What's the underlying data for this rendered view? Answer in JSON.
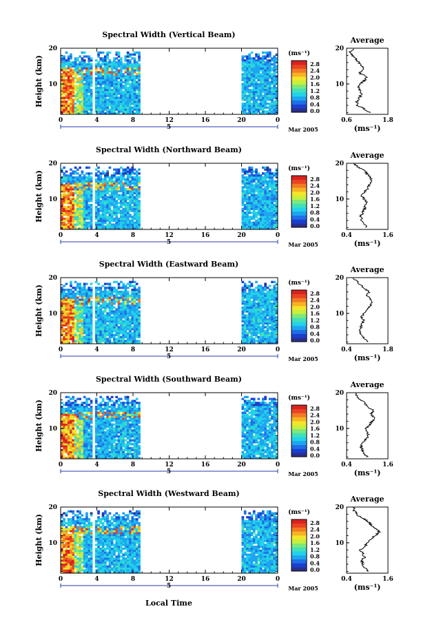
{
  "xlabel": "Local Time",
  "units_label": "(ms⁻¹)",
  "date_label": "Mar 2005",
  "colorbar": {
    "ticks": [
      "2.8",
      "2.4",
      "2.0",
      "1.6",
      "1.2",
      "0.8",
      "0.4",
      "0.0"
    ],
    "colors": [
      "#2b2f8a",
      "#1a3fd0",
      "#1f6fe6",
      "#1ea5f0",
      "#22d2e8",
      "#42e0b8",
      "#7ee87a",
      "#c6ef3e",
      "#f3e52a",
      "#f7b324",
      "#f37a25",
      "#e94422",
      "#d92320"
    ]
  },
  "chart_data": [
    {
      "type": "heatmap",
      "title": "Spectral Width (Vertical Beam)",
      "ylabel": "Height (km)",
      "xlabel": "Local Time",
      "xticks": [
        "0",
        "4",
        "8",
        "12",
        "16",
        "20",
        "0"
      ],
      "xlim": [
        0,
        24
      ],
      "ylim": [
        1.5,
        20
      ],
      "yticks": [
        "20",
        "10"
      ],
      "segment_label": "5",
      "data_intervals_hours": [
        [
          0,
          3.5
        ],
        [
          3.8,
          8.8
        ],
        [
          20,
          24
        ]
      ],
      "colorbar_range": [
        0,
        3
      ],
      "profile": {
        "title": "Average",
        "xlim": [
          0.6,
          1.8
        ],
        "xticks": [
          "0.6",
          "1.8"
        ],
        "yticks": [
          "20",
          "10"
        ],
        "xlabel": "(ms⁻¹)",
        "height_km": [
          2,
          3,
          4,
          5,
          6,
          7,
          8,
          9,
          10,
          11,
          12,
          13,
          14,
          15,
          16,
          17,
          18,
          19,
          20
        ],
        "width": [
          1.28,
          1.12,
          0.92,
          0.9,
          0.96,
          1.02,
          0.98,
          0.95,
          1.0,
          1.12,
          1.2,
          0.98,
          1.08,
          1.04,
          0.96,
          0.86,
          0.78,
          0.7,
          0.8
        ]
      }
    },
    {
      "type": "heatmap",
      "title": "Spectral Width (Northward Beam)",
      "ylabel": "Height (km)",
      "xlabel": "Local Time",
      "xticks": [
        "0",
        "4",
        "8",
        "12",
        "16",
        "20",
        "0"
      ],
      "xlim": [
        0,
        24
      ],
      "ylim": [
        1.5,
        20
      ],
      "yticks": [
        "20",
        "10"
      ],
      "segment_label": "5",
      "data_intervals_hours": [
        [
          0,
          3.5
        ],
        [
          3.8,
          8.8
        ],
        [
          20,
          24
        ]
      ],
      "colorbar_range": [
        0,
        3
      ],
      "profile": {
        "title": "Average",
        "xlim": [
          0.4,
          1.6
        ],
        "xticks": [
          "0.4",
          "1.6"
        ],
        "yticks": [
          "20",
          "10"
        ],
        "xlabel": "(ms⁻¹)",
        "height_km": [
          2,
          3,
          4,
          5,
          6,
          7,
          8,
          9,
          10,
          11,
          12,
          13,
          14,
          15,
          16,
          17,
          18,
          19,
          20
        ],
        "width": [
          0.98,
          0.9,
          0.84,
          0.8,
          0.86,
          0.92,
          0.94,
          1.0,
          0.9,
          0.82,
          0.92,
          1.02,
          1.06,
          1.14,
          1.08,
          1.0,
          0.9,
          0.72,
          0.6
        ]
      }
    },
    {
      "type": "heatmap",
      "title": "Spectral Width (Eastward Beam)",
      "ylabel": "Height (km)",
      "xlabel": "Local Time",
      "xticks": [
        "0",
        "4",
        "8",
        "12",
        "16",
        "20",
        "0"
      ],
      "xlim": [
        0,
        24
      ],
      "ylim": [
        1.5,
        20
      ],
      "yticks": [
        "20",
        "10"
      ],
      "segment_label": "5",
      "data_intervals_hours": [
        [
          0,
          3.5
        ],
        [
          3.8,
          8.8
        ],
        [
          20,
          24
        ]
      ],
      "colorbar_range": [
        0,
        3
      ],
      "profile": {
        "title": "Average",
        "xlim": [
          0.4,
          1.8
        ],
        "xticks": [
          "0.4",
          "1.8"
        ],
        "yticks": [
          "20",
          "10"
        ],
        "xlabel": "(ms⁻¹)",
        "height_km": [
          2,
          3,
          4,
          5,
          6,
          7,
          8,
          9,
          10,
          11,
          12,
          13,
          14,
          15,
          16,
          17,
          18,
          19,
          20
        ],
        "width": [
          1.1,
          1.0,
          0.9,
          0.84,
          0.88,
          0.92,
          0.98,
          0.9,
          1.0,
          1.12,
          1.18,
          1.28,
          1.2,
          1.08,
          1.16,
          1.0,
          0.86,
          0.74,
          0.62
        ]
      }
    },
    {
      "type": "heatmap",
      "title": "Spectral Width (Southward Beam)",
      "ylabel": "Height (km)",
      "xlabel": "Local Time",
      "xticks": [
        "0",
        "4",
        "8",
        "12",
        "16",
        "20",
        "0"
      ],
      "xlim": [
        0,
        24
      ],
      "ylim": [
        1.5,
        20
      ],
      "yticks": [
        "20",
        "10"
      ],
      "segment_label": "5",
      "data_intervals_hours": [
        [
          0,
          3.5
        ],
        [
          3.8,
          8.8
        ],
        [
          20,
          24
        ]
      ],
      "colorbar_range": [
        0,
        3
      ],
      "profile": {
        "title": "Average",
        "xlim": [
          0.4,
          1.6
        ],
        "xticks": [
          "0.4",
          "1.6"
        ],
        "yticks": [
          "20",
          "10"
        ],
        "xlabel": "(ms⁻¹)",
        "height_km": [
          2,
          3,
          4,
          5,
          6,
          7,
          8,
          9,
          10,
          11,
          12,
          13,
          14,
          15,
          16,
          17,
          18,
          19,
          20
        ],
        "width": [
          1.0,
          0.92,
          0.86,
          0.8,
          0.86,
          0.96,
          1.04,
          1.0,
          0.96,
          1.06,
          1.14,
          1.2,
          1.1,
          1.18,
          1.02,
          0.94,
          0.8,
          0.7,
          0.64
        ]
      }
    },
    {
      "type": "heatmap",
      "title": "Spectral Width (Westward Beam)",
      "ylabel": "Height (km)",
      "xlabel": "Local Time",
      "xticks": [
        "0",
        "4",
        "8",
        "12",
        "16",
        "20",
        "0"
      ],
      "xlim": [
        0,
        24
      ],
      "ylim": [
        1.5,
        20
      ],
      "yticks": [
        "20",
        "10"
      ],
      "segment_label": "5",
      "data_intervals_hours": [
        [
          0,
          3.5
        ],
        [
          3.8,
          8.8
        ],
        [
          20,
          24
        ]
      ],
      "colorbar_range": [
        0,
        3
      ],
      "profile": {
        "title": "Average",
        "xlim": [
          0.4,
          1.6
        ],
        "xticks": [
          "0.4",
          "1.6"
        ],
        "yticks": [
          "20",
          "10"
        ],
        "xlabel": "(ms⁻¹)",
        "height_km": [
          2,
          3,
          4,
          5,
          6,
          7,
          8,
          9,
          10,
          11,
          12,
          13,
          14,
          15,
          16,
          17,
          18,
          19,
          20
        ],
        "width": [
          1.02,
          0.92,
          0.86,
          0.84,
          0.92,
          0.86,
          0.8,
          0.92,
          1.0,
          1.12,
          1.22,
          1.36,
          1.24,
          1.1,
          1.02,
          0.84,
          0.7,
          0.62,
          0.6
        ]
      }
    }
  ]
}
